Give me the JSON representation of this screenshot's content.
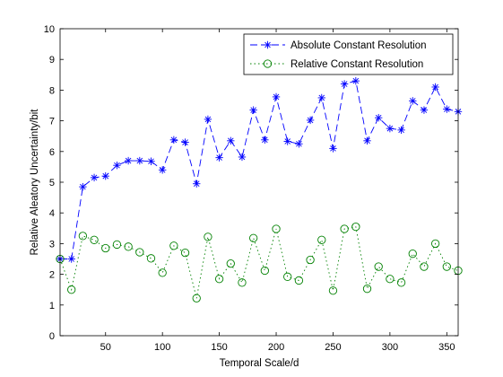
{
  "chart_data": {
    "type": "line",
    "xlabel": "Temporal Scale/d",
    "ylabel": "Relative Aleatory Uncertainty/bit",
    "xlim": [
      10,
      360
    ],
    "ylim": [
      0,
      10
    ],
    "xticks": [
      50,
      100,
      150,
      200,
      250,
      300,
      350
    ],
    "yticks": [
      0,
      1,
      2,
      3,
      4,
      5,
      6,
      7,
      8,
      9,
      10
    ],
    "grid": false,
    "legend_position": "top-right",
    "x": [
      10,
      20,
      30,
      40,
      50,
      60,
      70,
      80,
      90,
      100,
      110,
      120,
      130,
      140,
      150,
      160,
      170,
      180,
      190,
      200,
      210,
      220,
      230,
      240,
      250,
      260,
      270,
      280,
      290,
      300,
      310,
      320,
      330,
      340,
      350,
      360
    ],
    "series": [
      {
        "name": "Absolute Constant Resolution",
        "color": "#0000ff",
        "line_style": "dashed",
        "marker": "asterisk",
        "values": [
          2.5,
          2.5,
          4.85,
          5.15,
          5.2,
          5.55,
          5.7,
          5.7,
          5.68,
          5.4,
          6.38,
          6.3,
          4.95,
          7.05,
          5.8,
          6.35,
          5.82,
          7.35,
          6.38,
          7.78,
          6.33,
          6.25,
          7.02,
          7.75,
          6.1,
          8.2,
          8.3,
          6.35,
          7.1,
          6.75,
          6.7,
          7.65,
          7.35,
          8.1,
          7.38,
          7.3
        ]
      },
      {
        "name": "Relative Constant Resolution",
        "color": "#008000",
        "line_style": "dotted",
        "marker": "circle",
        "values": [
          2.5,
          1.5,
          3.25,
          3.12,
          2.85,
          2.97,
          2.9,
          2.72,
          2.52,
          2.05,
          2.93,
          2.7,
          1.22,
          3.22,
          1.85,
          2.35,
          1.73,
          3.18,
          2.12,
          3.48,
          1.92,
          1.8,
          2.47,
          3.12,
          1.47,
          3.48,
          3.55,
          1.53,
          2.25,
          1.85,
          1.73,
          2.67,
          2.25,
          3.0,
          2.25,
          2.12
        ]
      }
    ]
  }
}
